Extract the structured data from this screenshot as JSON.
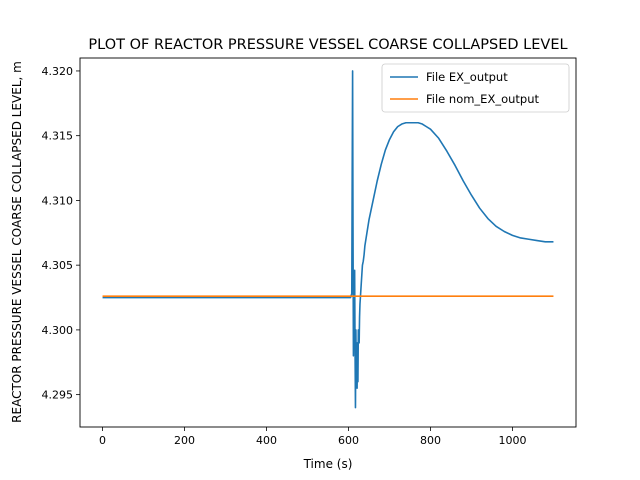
{
  "chart_data": {
    "type": "line",
    "title": "PLOT OF REACTOR PRESSURE VESSEL COARSE COLLAPSED LEVEL",
    "xlabel": "Time (s)",
    "ylabel": "REACTOR PRESSURE VESSEL COARSE COLLAPSED LEVEL, m",
    "xlim": [
      -55,
      1155
    ],
    "ylim": [
      4.2925,
      4.321
    ],
    "xticks": [
      0,
      200,
      400,
      600,
      800,
      1000
    ],
    "xtick_labels": [
      "0",
      "200",
      "400",
      "600",
      "800",
      "1000"
    ],
    "yticks": [
      4.295,
      4.3,
      4.305,
      4.31,
      4.315,
      4.32
    ],
    "ytick_labels": [
      "4.295",
      "4.300",
      "4.305",
      "4.310",
      "4.315",
      "4.320"
    ],
    "grid": false,
    "legend_position": "top-right",
    "series": [
      {
        "name": "File EX_output",
        "color": "#1f77b4",
        "x": [
          0,
          100,
          200,
          300,
          400,
          500,
          600,
          605,
          608,
          609,
          610,
          611,
          612,
          613,
          614,
          615,
          616,
          617,
          618,
          619,
          620,
          621,
          622,
          623,
          624,
          625,
          626,
          627,
          628,
          630,
          632,
          634,
          636,
          638,
          640,
          645,
          650,
          660,
          670,
          680,
          690,
          700,
          710,
          720,
          730,
          740,
          750,
          760,
          770,
          780,
          790,
          800,
          820,
          840,
          860,
          880,
          900,
          920,
          940,
          960,
          980,
          1000,
          1020,
          1040,
          1060,
          1080,
          1100
        ],
        "y": [
          4.3025,
          4.3025,
          4.3025,
          4.3025,
          4.3025,
          4.3025,
          4.3025,
          4.3025,
          4.3028,
          4.312,
          4.32,
          4.308,
          4.298,
          4.304,
          4.299,
          4.3046,
          4.2985,
          4.294,
          4.3,
          4.297,
          4.299,
          4.2955,
          4.299,
          4.296,
          4.3,
          4.299,
          4.299,
          4.301,
          4.302,
          4.303,
          4.304,
          4.305,
          4.3053,
          4.3058,
          4.3065,
          4.3075,
          4.3085,
          4.31,
          4.3115,
          4.3128,
          4.3139,
          4.3147,
          4.3153,
          4.3157,
          4.3159,
          4.316,
          4.316,
          4.316,
          4.316,
          4.3159,
          4.3157,
          4.3155,
          4.3148,
          4.3138,
          4.3127,
          4.3115,
          4.3104,
          4.3094,
          4.3086,
          4.308,
          4.3076,
          4.3073,
          4.3071,
          4.307,
          4.3069,
          4.3068,
          4.3068
        ]
      },
      {
        "name": "File nom_EX_output",
        "color": "#ff7f0e",
        "x": [
          0,
          200,
          400,
          600,
          800,
          1000,
          1100
        ],
        "y": [
          4.3026,
          4.3026,
          4.3026,
          4.3026,
          4.3026,
          4.3026,
          4.3026
        ]
      }
    ]
  }
}
